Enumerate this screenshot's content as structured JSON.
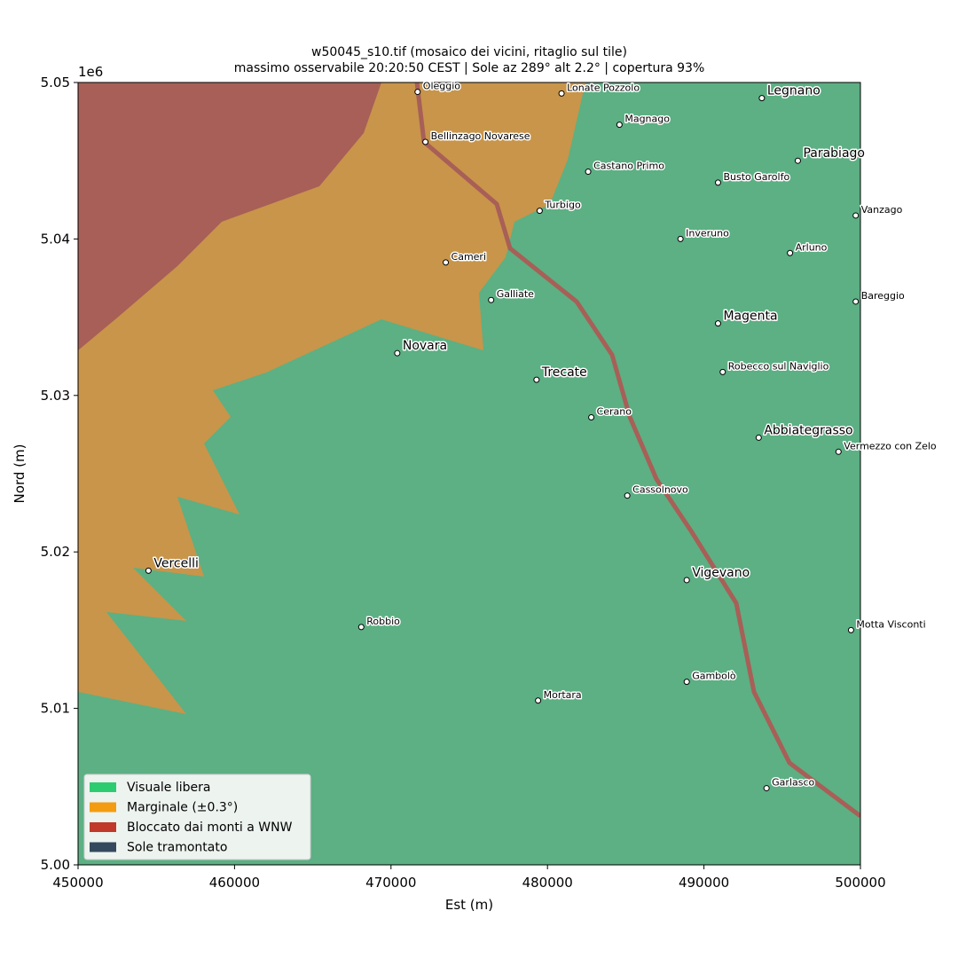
{
  "chart_data": {
    "type": "map",
    "title": "w50045_s10.tif  (mosaico dei vicini, ritaglio sul tile)",
    "subtitle": "massimo osservabile 20:20:50 CEST | Sole az 289° alt 2.2° | copertura 93%",
    "x_label": "Est (m)",
    "y_label": "Nord (m)",
    "y_offset_label": "1e6",
    "xlim": [
      450000,
      500000
    ],
    "ylim": [
      5000000,
      5050000
    ],
    "xticks": [
      450000,
      460000,
      470000,
      480000,
      490000,
      500000
    ],
    "yticks": [
      {
        "value": 5000000,
        "label": "5.00"
      },
      {
        "value": 5010000,
        "label": "5.01"
      },
      {
        "value": 5020000,
        "label": "5.02"
      },
      {
        "value": 5030000,
        "label": "5.03"
      },
      {
        "value": 5040000,
        "label": "5.04"
      },
      {
        "value": 5050000,
        "label": "5.05"
      }
    ],
    "legend_position": "lower left",
    "legend": [
      {
        "label": "Visuale libera",
        "color": "#2ecc71"
      },
      {
        "label": "Marginale (±0.3°)",
        "color": "#f39c12"
      },
      {
        "label": "Bloccato dai monti a WNW",
        "color": "#c0392b"
      },
      {
        "label": "Sole tramontato",
        "color": "#34495e"
      }
    ],
    "places": [
      {
        "name": "Oleggio",
        "x": 471700,
        "y": 5049400,
        "major": false
      },
      {
        "name": "Lonate Pozzolo",
        "x": 480900,
        "y": 5049300,
        "major": false
      },
      {
        "name": "Legnano",
        "x": 493700,
        "y": 5049000,
        "major": true
      },
      {
        "name": "Magnago",
        "x": 484600,
        "y": 5047300,
        "major": false
      },
      {
        "name": "Bellinzago Novarese",
        "x": 472200,
        "y": 5046200,
        "major": false
      },
      {
        "name": "Parabiago",
        "x": 496000,
        "y": 5045000,
        "major": true
      },
      {
        "name": "Castano Primo",
        "x": 482600,
        "y": 5044300,
        "major": false
      },
      {
        "name": "Busto Garolfo",
        "x": 490900,
        "y": 5043600,
        "major": false
      },
      {
        "name": "Turbigo",
        "x": 479500,
        "y": 5041800,
        "major": false
      },
      {
        "name": "Vanzago",
        "x": 499700,
        "y": 5041500,
        "major": false
      },
      {
        "name": "Inveruno",
        "x": 488500,
        "y": 5040000,
        "major": false
      },
      {
        "name": "Arluno",
        "x": 495500,
        "y": 5039100,
        "major": false
      },
      {
        "name": "Cameri",
        "x": 473500,
        "y": 5038500,
        "major": false
      },
      {
        "name": "Galliate",
        "x": 476400,
        "y": 5036100,
        "major": false
      },
      {
        "name": "Bareggio",
        "x": 499700,
        "y": 5036000,
        "major": false
      },
      {
        "name": "Magenta",
        "x": 490900,
        "y": 5034600,
        "major": true
      },
      {
        "name": "Novara",
        "x": 470400,
        "y": 5032700,
        "major": true
      },
      {
        "name": "Robecco sul Naviglio",
        "x": 491200,
        "y": 5031500,
        "major": false
      },
      {
        "name": "Trecate",
        "x": 479300,
        "y": 5031000,
        "major": true
      },
      {
        "name": "Cerano",
        "x": 482800,
        "y": 5028600,
        "major": false
      },
      {
        "name": "Abbiategrasso",
        "x": 493500,
        "y": 5027300,
        "major": true
      },
      {
        "name": "Vermezzo con Zelo",
        "x": 498600,
        "y": 5026400,
        "major": false
      },
      {
        "name": "Cassolnovo",
        "x": 485100,
        "y": 5023600,
        "major": false
      },
      {
        "name": "Vercelli",
        "x": 454500,
        "y": 5018800,
        "major": true
      },
      {
        "name": "Vigevano",
        "x": 488900,
        "y": 5018200,
        "major": true
      },
      {
        "name": "Robbio",
        "x": 468100,
        "y": 5015200,
        "major": false
      },
      {
        "name": "Motta Visconti",
        "x": 499400,
        "y": 5015000,
        "major": false
      },
      {
        "name": "Gambolò",
        "x": 488900,
        "y": 5011700,
        "major": false
      },
      {
        "name": "Mortara",
        "x": 479400,
        "y": 5010500,
        "major": false
      },
      {
        "name": "Garlasco",
        "x": 494000,
        "y": 5004900,
        "major": false
      }
    ]
  }
}
